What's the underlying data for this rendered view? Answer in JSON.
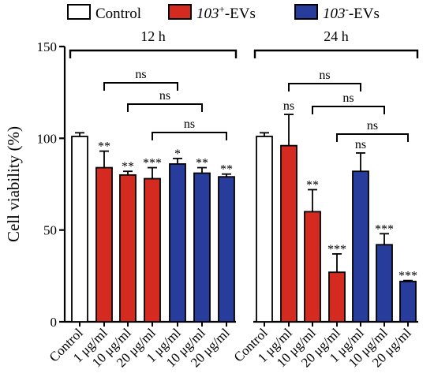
{
  "chart_data": {
    "type": "bar",
    "ylabel": "Cell viability (%)",
    "ylim": [
      0,
      150
    ],
    "yticks": [
      "0",
      "50",
      "100",
      "150"
    ],
    "yticks_values": [
      0,
      50,
      100,
      150
    ],
    "legend": [
      {
        "label_italic": "",
        "label_sup": "",
        "label_rest": "Control",
        "color": "#ffffff"
      },
      {
        "label_italic": "103",
        "label_sup": "+",
        "label_rest": "-EVs",
        "color": "#d42a1f"
      },
      {
        "label_italic": "103",
        "label_sup": "-",
        "label_rest": "-EVs",
        "color": "#283c9b"
      }
    ],
    "legend_placement": "top",
    "groups": [
      {
        "name": "12 h",
        "bars": [
          {
            "category": "Control",
            "value": 101,
            "error": 2,
            "color": "#ffffff",
            "sig": ""
          },
          {
            "category": "1 μg/ml",
            "value": 84,
            "error": 9,
            "color": "#d42a1f",
            "sig": "**"
          },
          {
            "category": "10 μg/ml",
            "value": 80,
            "error": 2,
            "color": "#d42a1f",
            "sig": "**"
          },
          {
            "category": "20 μg/ml",
            "value": 78,
            "error": 6,
            "color": "#d42a1f",
            "sig": "***"
          },
          {
            "category": "1 μg/ml",
            "value": 86,
            "error": 3,
            "color": "#283c9b",
            "sig": "*"
          },
          {
            "category": "10 μg/ml",
            "value": 81,
            "error": 3,
            "color": "#283c9b",
            "sig": "**"
          },
          {
            "category": "20 μg/ml",
            "value": 79,
            "error": 1.5,
            "color": "#283c9b",
            "sig": "**"
          }
        ],
        "brackets": [
          {
            "from": 1,
            "to": 4,
            "label": "ns"
          },
          {
            "from": 2,
            "to": 5,
            "label": "ns"
          },
          {
            "from": 3,
            "to": 6,
            "label": "ns"
          }
        ]
      },
      {
        "name": "24 h",
        "bars": [
          {
            "category": "Control",
            "value": 101,
            "error": 2,
            "color": "#ffffff",
            "sig": ""
          },
          {
            "category": "1 μg/ml",
            "value": 96,
            "error": 17,
            "color": "#d42a1f",
            "sig": "ns"
          },
          {
            "category": "10 μg/ml",
            "value": 60,
            "error": 12,
            "color": "#d42a1f",
            "sig": "**"
          },
          {
            "category": "20 μg/ml",
            "value": 27,
            "error": 10,
            "color": "#d42a1f",
            "sig": "***"
          },
          {
            "category": "1 μg/ml",
            "value": 82,
            "error": 10,
            "color": "#283c9b",
            "sig": "ns"
          },
          {
            "category": "10 μg/ml",
            "value": 42,
            "error": 6,
            "color": "#283c9b",
            "sig": "***"
          },
          {
            "category": "20 μg/ml",
            "value": 22,
            "error": 0.5,
            "color": "#283c9b",
            "sig": "***"
          }
        ],
        "brackets": [
          {
            "from": 1,
            "to": 4,
            "label": "ns"
          },
          {
            "from": 2,
            "to": 5,
            "label": "ns"
          },
          {
            "from": 3,
            "to": 6,
            "label": "ns"
          }
        ]
      }
    ]
  }
}
